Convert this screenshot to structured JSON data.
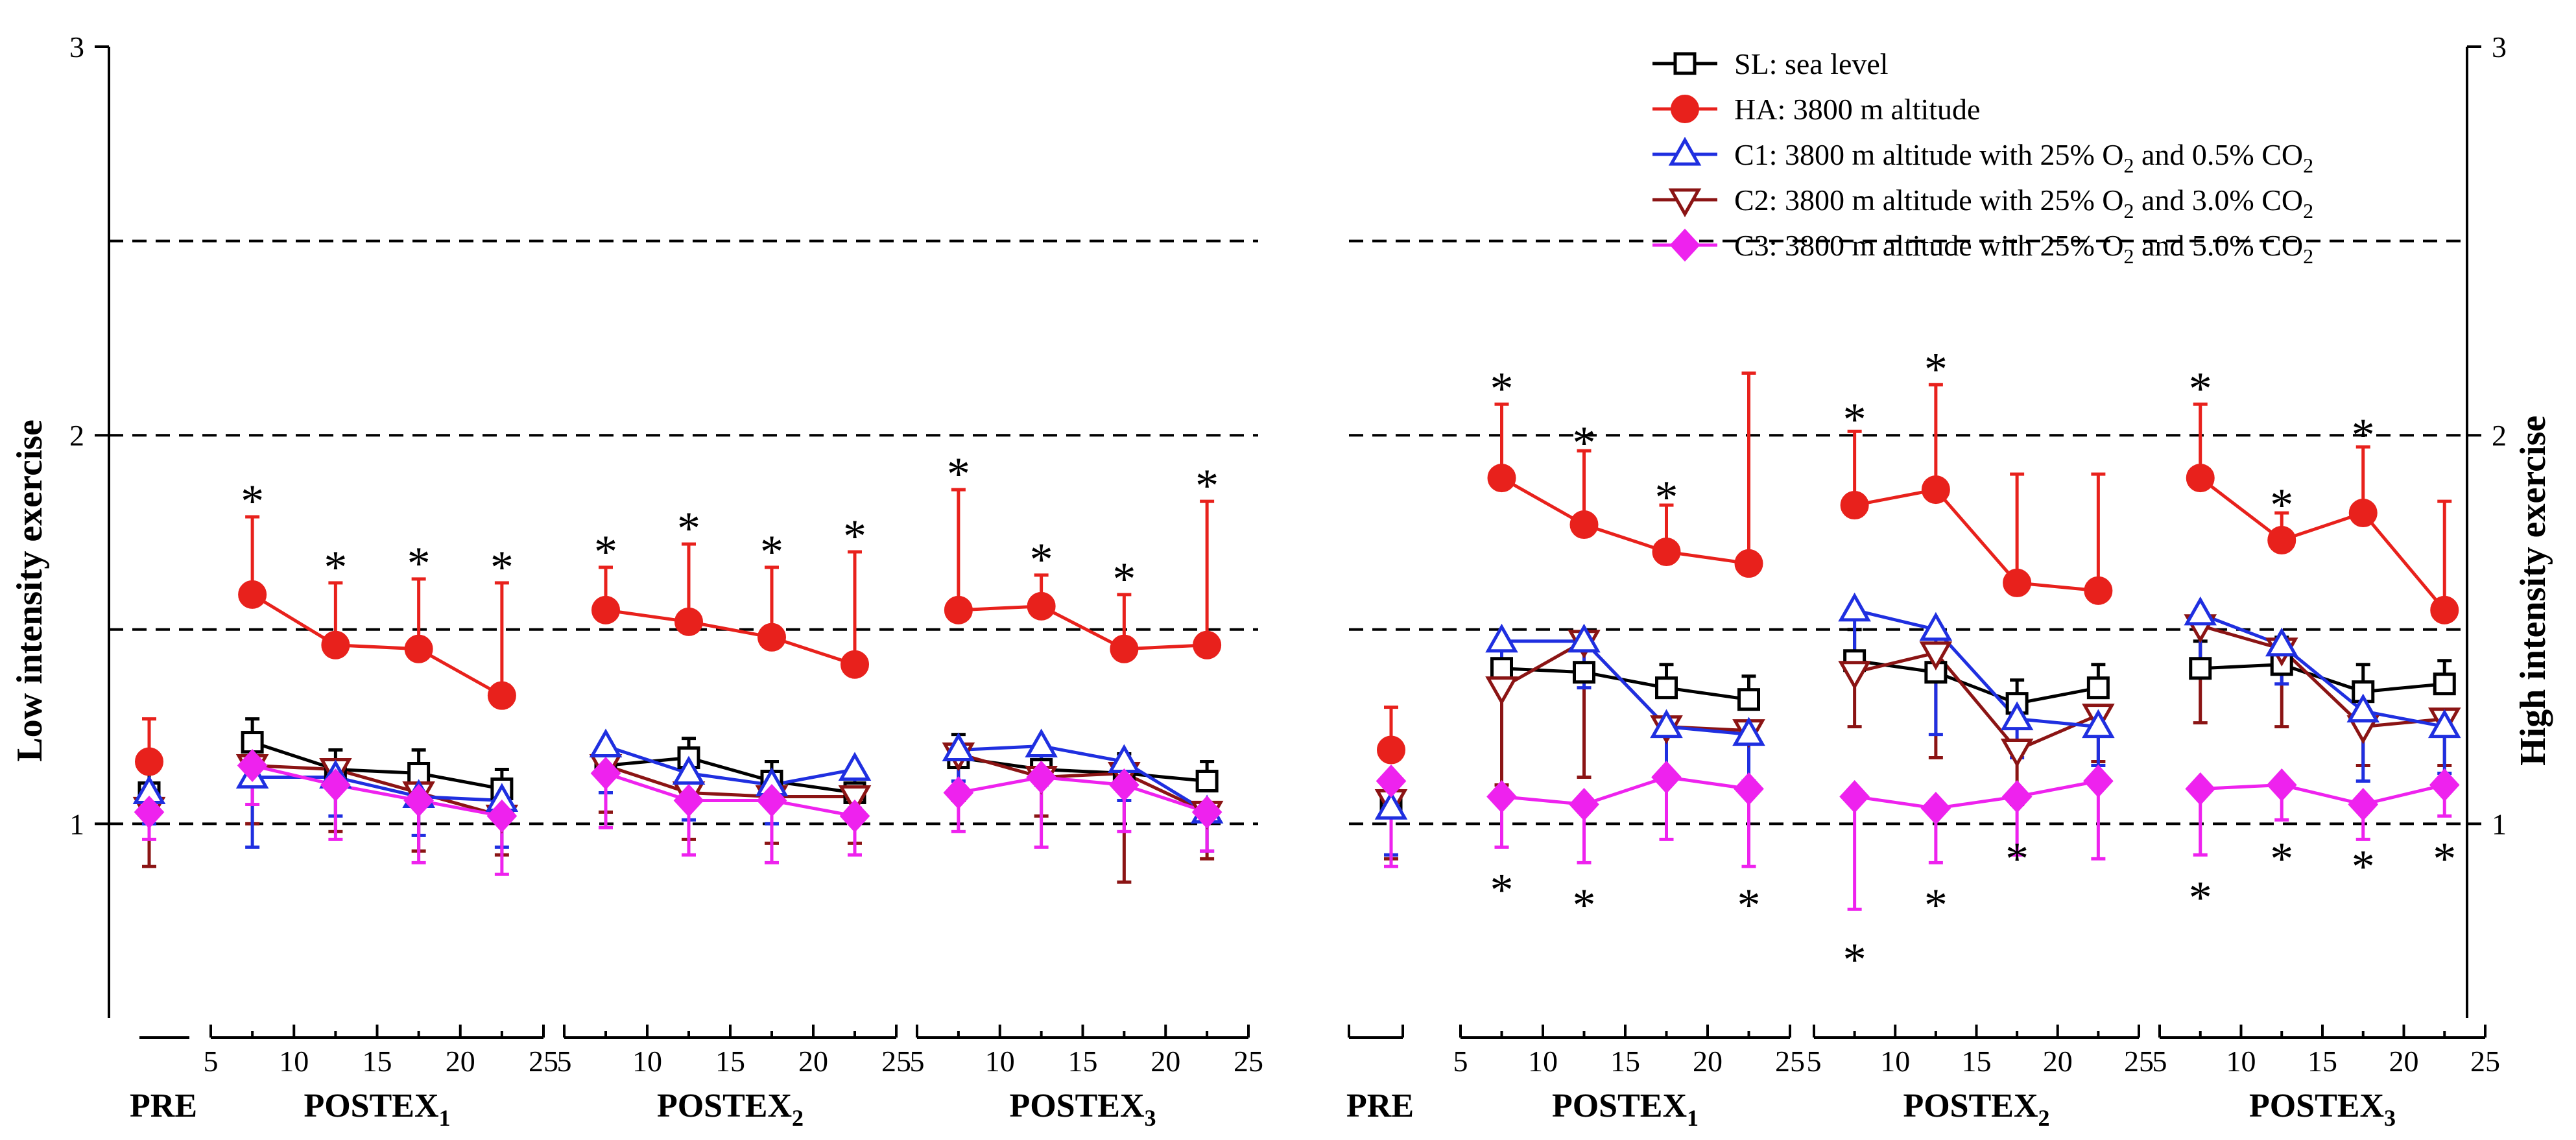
{
  "chart_data": {
    "type": "line",
    "y_axis": {
      "left_title": "Low intensity exercise",
      "right_title": "High intensity exercise",
      "ylim": [
        0.5,
        3
      ],
      "ticks": [
        1,
        2,
        3
      ],
      "tick_labels": [
        "1",
        "2",
        "3"
      ],
      "dashed_gridlines": [
        1,
        1.5,
        2,
        2.5
      ]
    },
    "x_tick_labels": [
      "5",
      "10",
      "15",
      "20",
      "25"
    ],
    "x_ticks": [
      5,
      10,
      15,
      20,
      25
    ],
    "legend": [
      {
        "key": "SL",
        "prefix": "SL: sea level",
        "sub1": "",
        "mid": "",
        "sub2": "",
        "color": "#000000",
        "marker": "open-square"
      },
      {
        "key": "HA",
        "prefix": "HA: 3800 m altitude",
        "sub1": "",
        "mid": "",
        "sub2": "",
        "color": "#e8211c",
        "marker": "filled-circle"
      },
      {
        "key": "C1",
        "prefix": "C1: 3800 m altitude with 25% O",
        "sub1": "2",
        "mid": " and 0.5% CO",
        "sub2": "2",
        "color": "#1f2fe0",
        "marker": "open-triangle-up"
      },
      {
        "key": "C2",
        "prefix": "C2: 3800 m altitude with 25% O",
        "sub1": "2",
        "mid": " and 3.0% CO",
        "sub2": "2",
        "color": "#8b1414",
        "marker": "open-triangle-down"
      },
      {
        "key": "C3",
        "prefix": "C3: 3800 m altitude with 25% O",
        "sub1": "2",
        "mid": " and 5.0% CO",
        "sub2": "2",
        "color": "#ee22ee",
        "marker": "filled-diamond"
      }
    ],
    "panels": [
      {
        "name": "low",
        "pre_label": "PRE",
        "groups": [
          {
            "label": "POSTEX",
            "sub": "1"
          },
          {
            "label": "POSTEX",
            "sub": "2"
          },
          {
            "label": "POSTEX",
            "sub": "3"
          }
        ],
        "pre": {
          "SL": 1.08,
          "HA": 1.16,
          "C1": 1.08,
          "C2": 1.04,
          "C3": 1.03
        },
        "pre_err": {
          "SL": 0.08,
          "HA": 0.11,
          "C1": 0.08,
          "C2": 0.15,
          "C3": 0.07
        },
        "pre_err_dir": {
          "SL": 1,
          "HA": 1,
          "C1": -1,
          "C2": -1,
          "C3": -1
        },
        "series": {
          "SL": [
            [
              1.21,
              1.14,
              1.13,
              1.09
            ],
            [
              1.15,
              1.17,
              1.11,
              1.08
            ],
            [
              1.17,
              1.14,
              1.13,
              1.11
            ]
          ],
          "HA": [
            [
              1.59,
              1.46,
              1.45,
              1.33
            ],
            [
              1.55,
              1.52,
              1.48,
              1.41
            ],
            [
              1.55,
              1.56,
              1.45,
              1.46
            ]
          ],
          "C1": [
            [
              1.12,
              1.12,
              1.07,
              1.06
            ],
            [
              1.2,
              1.13,
              1.1,
              1.14
            ],
            [
              1.19,
              1.2,
              1.16,
              1.03
            ]
          ],
          "C2": [
            [
              1.15,
              1.14,
              1.08,
              1.02
            ],
            [
              1.15,
              1.08,
              1.07,
              1.07
            ],
            [
              1.18,
              1.12,
              1.13,
              1.03
            ]
          ],
          "C3": [
            [
              1.15,
              1.1,
              1.06,
              1.02
            ],
            [
              1.13,
              1.06,
              1.06,
              1.02
            ],
            [
              1.08,
              1.12,
              1.1,
              1.03
            ]
          ]
        },
        "errors": {
          "SL": [
            [
              0.06,
              0.05,
              0.06,
              0.05
            ],
            [
              0.06,
              0.05,
              0.05,
              0.05
            ],
            [
              0.06,
              0.05,
              0.05,
              0.05
            ]
          ],
          "HA": [
            [
              0.2,
              0.16,
              0.18,
              0.29
            ],
            [
              0.11,
              0.2,
              0.18,
              0.29
            ],
            [
              0.31,
              0.08,
              0.14,
              0.37
            ]
          ],
          "C1": [
            [
              0.18,
              0.1,
              0.1,
              0.12
            ],
            [
              0.12,
              0.12,
              0.1,
              0.1
            ],
            [
              0.08,
              0.1,
              0.1,
              0.1
            ]
          ],
          "C2": [
            [
              0.15,
              0.16,
              0.15,
              0.1
            ],
            [
              0.12,
              0.12,
              0.12,
              0.12
            ],
            [
              0.12,
              0.1,
              0.28,
              0.12
            ]
          ],
          "C3": [
            [
              0.1,
              0.14,
              0.16,
              0.15
            ],
            [
              0.14,
              0.14,
              0.16,
              0.1
            ],
            [
              0.1,
              0.18,
              0.12,
              0.1
            ]
          ]
        },
        "error_dir": {
          "SL": 1,
          "HA": 1,
          "C1": -1,
          "C2": -1,
          "C3": -1
        },
        "asterisks": [
          {
            "g": 0,
            "i": 0,
            "y": 1.85
          },
          {
            "g": 0,
            "i": 1,
            "y": 1.68
          },
          {
            "g": 0,
            "i": 2,
            "y": 1.69
          },
          {
            "g": 0,
            "i": 3,
            "y": 1.68
          },
          {
            "g": 1,
            "i": 0,
            "y": 1.72
          },
          {
            "g": 1,
            "i": 1,
            "y": 1.78
          },
          {
            "g": 1,
            "i": 2,
            "y": 1.72
          },
          {
            "g": 1,
            "i": 3,
            "y": 1.76
          },
          {
            "g": 2,
            "i": 0,
            "y": 1.92
          },
          {
            "g": 2,
            "i": 1,
            "y": 1.7
          },
          {
            "g": 2,
            "i": 2,
            "y": 1.65
          },
          {
            "g": 2,
            "i": 3,
            "y": 1.89
          }
        ]
      },
      {
        "name": "high",
        "pre_label": "PRE",
        "groups": [
          {
            "label": "POSTEX",
            "sub": "1"
          },
          {
            "label": "POSTEX",
            "sub": "2"
          },
          {
            "label": "POSTEX",
            "sub": "3"
          }
        ],
        "pre": {
          "SL": 1.06,
          "HA": 1.19,
          "C1": 1.04,
          "C2": 1.06,
          "C3": 1.11
        },
        "pre_err": {
          "SL": 0.06,
          "HA": 0.11,
          "C1": 0.12,
          "C2": 0.15,
          "C3": 0.22
        },
        "pre_err_dir": {
          "SL": 1,
          "HA": 1,
          "C1": -1,
          "C2": -1,
          "C3": -1
        },
        "series": {
          "SL": [
            [
              1.4,
              1.39,
              1.35,
              1.32
            ],
            [
              1.42,
              1.39,
              1.31,
              1.35
            ],
            [
              1.4,
              1.41,
              1.34,
              1.36
            ]
          ],
          "HA": [
            [
              1.89,
              1.77,
              1.7,
              1.67
            ],
            [
              1.82,
              1.86,
              1.62,
              1.6
            ],
            [
              1.89,
              1.73,
              1.8,
              1.55
            ]
          ],
          "C1": [
            [
              1.47,
              1.47,
              1.25,
              1.23
            ],
            [
              1.55,
              1.5,
              1.27,
              1.25
            ],
            [
              1.54,
              1.46,
              1.29,
              1.25
            ]
          ],
          "C2": [
            [
              1.35,
              1.47,
              1.25,
              1.24
            ],
            [
              1.39,
              1.44,
              1.19,
              1.28
            ],
            [
              1.51,
              1.45,
              1.25,
              1.27
            ]
          ],
          "C3": [
            [
              1.07,
              1.05,
              1.12,
              1.09
            ],
            [
              1.07,
              1.04,
              1.07,
              1.11
            ],
            [
              1.09,
              1.1,
              1.05,
              1.1
            ]
          ]
        },
        "errors": {
          "SL": [
            [
              0.06,
              0.06,
              0.06,
              0.06
            ],
            [
              0.08,
              0.06,
              0.06,
              0.06
            ],
            [
              0.07,
              0.07,
              0.07,
              0.06
            ]
          ],
          "HA": [
            [
              0.19,
              0.19,
              0.12,
              0.49
            ],
            [
              0.19,
              0.27,
              0.28,
              0.3
            ],
            [
              0.19,
              0.07,
              0.17,
              0.28
            ]
          ],
          "C1": [
            [
              0.1,
              0.12,
              0.14,
              0.12
            ],
            [
              0.12,
              0.27,
              0.1,
              0.1
            ],
            [
              0.12,
              0.1,
              0.18,
              0.12
            ]
          ],
          "C2": [
            [
              0.25,
              0.35,
              0.14,
              0.14
            ],
            [
              0.14,
              0.27,
              0.14,
              0.12
            ],
            [
              0.25,
              0.2,
              0.1,
              0.12
            ]
          ],
          "C3": [
            [
              0.13,
              0.15,
              0.16,
              0.2
            ],
            [
              0.29,
              0.14,
              0.15,
              0.2
            ],
            [
              0.17,
              0.09,
              0.09,
              0.08
            ]
          ]
        },
        "error_dir": {
          "SL": 1,
          "HA": 1,
          "C1": -1,
          "C2": -1,
          "C3": -1
        },
        "asterisks": [
          {
            "g": 0,
            "i": 0,
            "y": 2.14
          },
          {
            "g": 0,
            "i": 1,
            "y": 2.0
          },
          {
            "g": 0,
            "i": 2,
            "y": 1.86
          },
          {
            "g": 1,
            "i": 0,
            "y": 2.06
          },
          {
            "g": 1,
            "i": 1,
            "y": 2.19
          },
          {
            "g": 2,
            "i": 0,
            "y": 2.14
          },
          {
            "g": 2,
            "i": 1,
            "y": 1.84
          },
          {
            "g": 2,
            "i": 2,
            "y": 2.02
          },
          {
            "g": 0,
            "i": 0,
            "y": 0.85
          },
          {
            "g": 0,
            "i": 1,
            "y": 0.81
          },
          {
            "g": 0,
            "i": 3,
            "y": 0.81
          },
          {
            "g": 1,
            "i": 0,
            "y": 0.67
          },
          {
            "g": 1,
            "i": 1,
            "y": 0.81
          },
          {
            "g": 1,
            "i": 2,
            "y": 0.93
          },
          {
            "g": 2,
            "i": 0,
            "y": 0.83
          },
          {
            "g": 2,
            "i": 1,
            "y": 0.93
          },
          {
            "g": 2,
            "i": 2,
            "y": 0.91
          },
          {
            "g": 2,
            "i": 3,
            "y": 0.93
          }
        ]
      }
    ]
  }
}
